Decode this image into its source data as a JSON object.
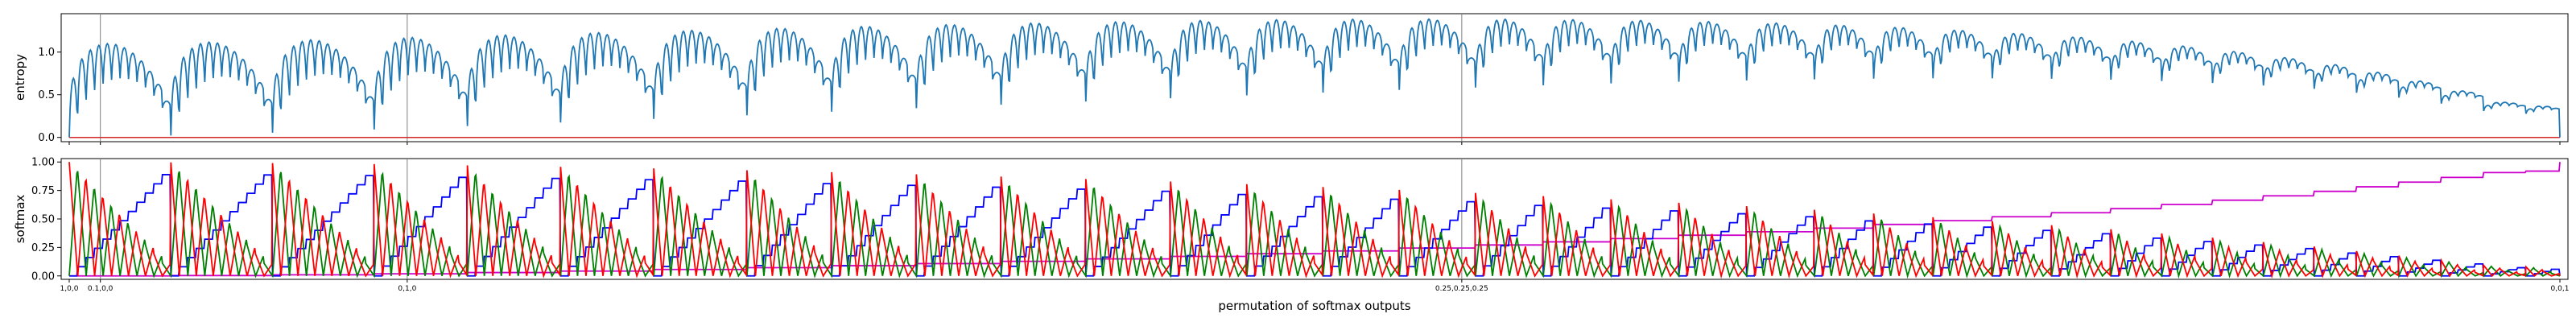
{
  "xlabel": "permutation of softmax outputs",
  "x_ticks": [
    {
      "x": 0.0,
      "label": "1,0,0"
    },
    {
      "x": 0.0125,
      "label": "0.1,0,0"
    },
    {
      "x": 0.1357,
      "label": "0,1,0"
    },
    {
      "x": 0.5591,
      "label": "0.25,0.25,0.25"
    },
    {
      "x": 1.0,
      "label": "0,0,1"
    }
  ],
  "vlines": [
    0.0125,
    0.1357,
    0.5591
  ],
  "colors": {
    "entropy_line": "#1f77b4",
    "baseline": "#d62728",
    "class_1": "#ff0000",
    "class_2": "#008000",
    "class_3": "#0000ff",
    "class_4": "#cc00cc",
    "vline": "#808080",
    "top_frame": "#008000"
  },
  "chart_data": [
    {
      "type": "line",
      "ylabel": "entropy",
      "ylim": [
        -0.05,
        1.45
      ],
      "yticks": [
        "0.0",
        "0.5",
        "1.0"
      ],
      "ytick_values": [
        0.0,
        0.5,
        1.0
      ],
      "grid": false,
      "series": [
        {
          "key": "entropy",
          "values_note": "oscillating entropy curve, peaks rising from ~0.7 to ~1.38 then falling to 0 at the end"
        },
        {
          "key": "baseline",
          "constant": 0.0
        }
      ]
    },
    {
      "type": "line",
      "ylabel": "softmax",
      "ylim": [
        -0.03,
        1.03
      ],
      "yticks": [
        "0.00",
        "0.25",
        "0.50",
        "0.75",
        "1.00"
      ],
      "ytick_values": [
        0.0,
        0.25,
        0.5,
        0.75,
        1.0
      ],
      "grid": false,
      "series": [
        {
          "key": "class_1"
        },
        {
          "key": "class_2"
        },
        {
          "key": "class_3"
        },
        {
          "key": "class_4"
        }
      ]
    }
  ]
}
